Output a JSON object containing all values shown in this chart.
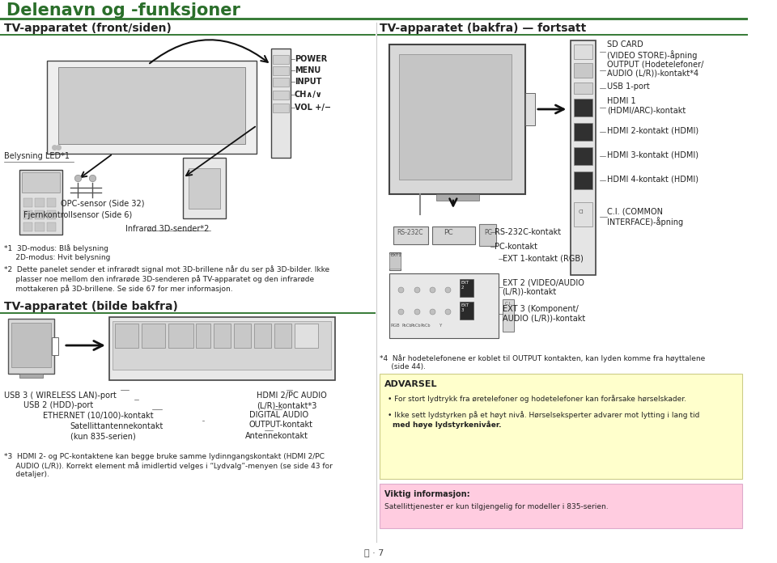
{
  "title": "Delenavn og -funksjoner",
  "title_color": "#2a6e2a",
  "title_fontsize": 15,
  "bg_color": "#ffffff",
  "header_line_color": "#3a7d3a",
  "left_section_title": "TV-apparatet (front/siden)",
  "right_section_title": "TV-apparatet (bakfra) — fortsatt",
  "bottom_left_section_title": "TV-apparatet (bilde bakfra)",
  "advarsel_title": "ADVARSEL",
  "advarsel_bg": "#ffffcc",
  "advarsel_line1": "For stort lydtrykk fra øretelefoner og hodetelefoner kan forårsake hørselskader.",
  "advarsel_line2": "Ikke sett lydstyrken på et høyt nivå. Hørselseksperter advarer mot lytting i lang tid",
  "advarsel_line2b": "med høye lydstyrkenivåer.",
  "viktig_title": "Viktig informasjon:",
  "viktig_bg": "#ffcce0",
  "viktig_text": "Satellittjenester er kun tilgjengelig for modeller i 835-serien.",
  "divider_color": "#3a7d3a",
  "section_title_fontsize": 10,
  "label_fontsize": 7,
  "body_fontsize": 6.5,
  "small_fontsize": 5.5,
  "footnote_text1a": "*1  3D-modus: Blå belysning",
  "footnote_text1b": "     2D-modus: Hvit belysning",
  "footnote_text2": "*2  Dette panelet sender et infrarødt signal mot 3D-brillene når du ser på 3D-bilder. Ikke",
  "footnote_text2b": "     plasser noe mellom den infrarøde 3D-senderen på TV-apparatet og den infrarøde",
  "footnote_text2c": "     mottakeren på 3D-brillene. Se side 67 for mer informasjon.",
  "footnote_text3": "*3  HDMI 2- og PC-kontaktene kan begge bruke samme lydinngangskontakt (HDMI 2/PC",
  "footnote_text3b": "     AUDIO (L/R)). Korrekt element må imidlertid velges i “Lydvalg”-menyen (se side 43 for",
  "footnote_text3c": "     detaljer).",
  "footnote_text4": "*4  Når hodetelefonene er koblet til OUTPUT kontakten, kan lyden komme fra høyttalene",
  "footnote_text4b": "     (side 44).",
  "page_num": "Ⓝ · 7"
}
